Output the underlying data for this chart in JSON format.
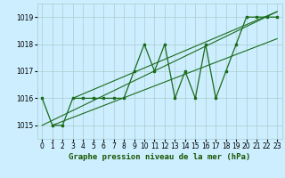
{
  "x": [
    0,
    1,
    2,
    3,
    4,
    5,
    6,
    7,
    8,
    9,
    10,
    11,
    12,
    13,
    14,
    15,
    16,
    17,
    18,
    19,
    20,
    21,
    22,
    23
  ],
  "y_main": [
    1016.0,
    1015.0,
    1015.0,
    1016.0,
    1016.0,
    1016.0,
    1016.0,
    1016.0,
    1016.0,
    1017.0,
    1018.0,
    1017.0,
    1018.0,
    1016.0,
    1017.0,
    1016.0,
    1018.0,
    1016.0,
    1017.0,
    1018.0,
    1019.0,
    1019.0,
    1019.0,
    1019.0
  ],
  "trend1_x": [
    0,
    23
  ],
  "trend1_y": [
    1015.0,
    1019.2
  ],
  "trend2_x": [
    1,
    23
  ],
  "trend2_y": [
    1015.0,
    1018.2
  ],
  "trend3_x": [
    3,
    23
  ],
  "trend3_y": [
    1016.0,
    1019.2
  ],
  "bg_color": "#cceeff",
  "line_color": "#1a6b1a",
  "grid_color": "#aacccc",
  "ylabel_ticks": [
    1015,
    1016,
    1017,
    1018,
    1019
  ],
  "xlabel": "Graphe pression niveau de la mer (hPa)",
  "ylim": [
    1014.5,
    1019.5
  ],
  "xlim": [
    -0.5,
    23.5
  ],
  "tick_fontsize": 5.5,
  "xlabel_fontsize": 6.5
}
